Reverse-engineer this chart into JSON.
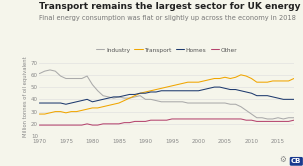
{
  "title": "Transport remains the largest sector for UK energy use by far",
  "subtitle": "Final energy consumption was flat or slightly up across the economy in 2018",
  "ylabel": "Million tonnes of oil equivalent",
  "xlim": [
    1970,
    2018
  ],
  "ylim": [
    10,
    75
  ],
  "yticks": [
    10,
    20,
    30,
    40,
    50,
    60,
    70
  ],
  "xticks": [
    1970,
    1975,
    1980,
    1985,
    1990,
    1995,
    2000,
    2005,
    2010,
    2015
  ],
  "legend_labels": [
    "Industry",
    "Transport",
    "Homes",
    "Other"
  ],
  "legend_colors": [
    "#aaaaaa",
    "#f0a500",
    "#1e3a6e",
    "#b5446e"
  ],
  "background_color": "#f5f5eb",
  "industry": [
    61,
    63,
    64,
    63,
    59,
    57,
    57,
    57,
    57,
    59,
    52,
    47,
    43,
    42,
    41,
    42,
    41,
    41,
    42,
    43,
    40,
    40,
    39,
    38,
    38,
    38,
    38,
    38,
    37,
    37,
    37,
    37,
    37,
    37,
    37,
    37,
    36,
    36,
    34,
    31,
    28,
    25,
    25,
    24,
    24,
    25,
    24,
    25,
    25
  ],
  "transport": [
    28,
    28,
    29,
    30,
    30,
    29,
    30,
    30,
    31,
    32,
    33,
    33,
    34,
    35,
    36,
    37,
    39,
    41,
    43,
    45,
    46,
    47,
    48,
    49,
    50,
    51,
    52,
    53,
    54,
    54,
    54,
    55,
    56,
    57,
    57,
    58,
    57,
    58,
    60,
    59,
    57,
    54,
    54,
    54,
    55,
    55,
    55,
    55,
    57
  ],
  "homes": [
    37,
    37,
    37,
    37,
    37,
    36,
    37,
    38,
    39,
    40,
    38,
    39,
    40,
    41,
    42,
    42,
    43,
    44,
    44,
    45,
    45,
    46,
    46,
    47,
    47,
    47,
    47,
    47,
    47,
    47,
    47,
    48,
    49,
    50,
    50,
    49,
    48,
    48,
    47,
    46,
    45,
    43,
    43,
    43,
    42,
    41,
    40,
    40,
    40
  ],
  "other": [
    19,
    19,
    19,
    19,
    19,
    19,
    19,
    19,
    19,
    20,
    19,
    19,
    20,
    20,
    20,
    20,
    21,
    21,
    22,
    22,
    22,
    23,
    23,
    23,
    23,
    24,
    24,
    24,
    24,
    24,
    24,
    24,
    24,
    24,
    24,
    24,
    24,
    24,
    24,
    23,
    23,
    22,
    22,
    22,
    22,
    22,
    22,
    22,
    23
  ],
  "years": [
    1970,
    1971,
    1972,
    1973,
    1974,
    1975,
    1976,
    1977,
    1978,
    1979,
    1980,
    1981,
    1982,
    1983,
    1984,
    1985,
    1986,
    1987,
    1988,
    1989,
    1990,
    1991,
    1992,
    1993,
    1994,
    1995,
    1996,
    1997,
    1998,
    1999,
    2000,
    2001,
    2002,
    2003,
    2004,
    2005,
    2006,
    2007,
    2008,
    2009,
    2010,
    2011,
    2012,
    2013,
    2014,
    2015,
    2016,
    2017,
    2018
  ]
}
